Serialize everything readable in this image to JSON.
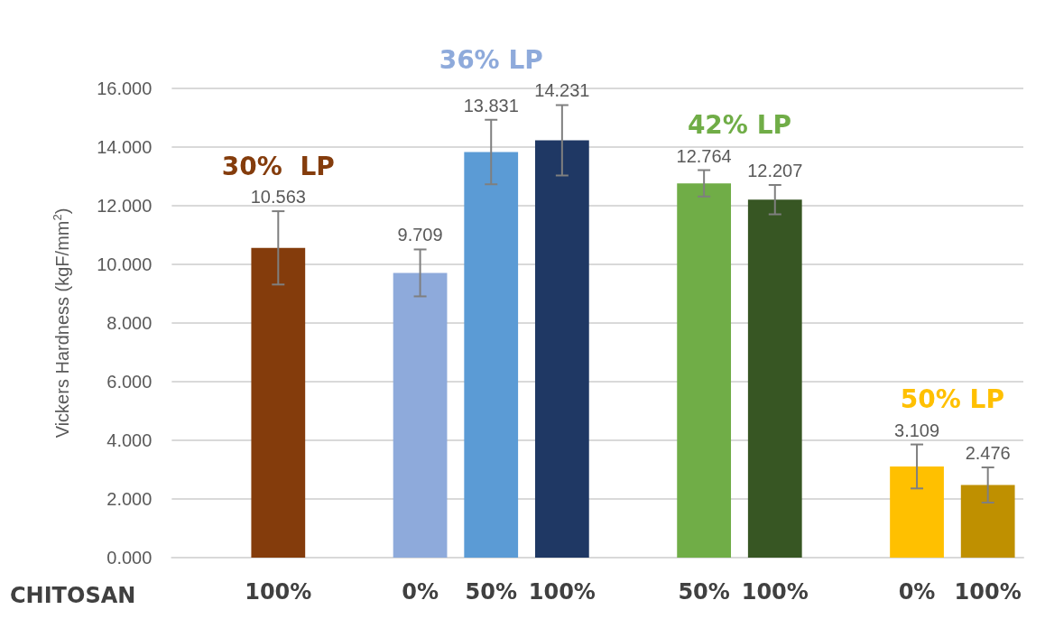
{
  "chart_data": {
    "type": "bar",
    "ylabel": "Vickers Hardness (kgF/mm$^{2}$)",
    "xlabel": "CHITOSAN",
    "categories": [
      null,
      "100%",
      null,
      "0%",
      "50%",
      "100%",
      null,
      "50%",
      "100%",
      null,
      "0%",
      "100%"
    ],
    "values": [
      null,
      10.563,
      null,
      9.709,
      13.831,
      14.231,
      null,
      12.764,
      12.207,
      null,
      3.109,
      2.476
    ],
    "errors": [
      null,
      1.25,
      null,
      0.8,
      1.1,
      1.2,
      null,
      0.45,
      0.5,
      null,
      0.75,
      0.6
    ],
    "colors": [
      null,
      "#843c0c",
      null,
      "#8eaadb",
      "#5b9bd5",
      "#1f3864",
      null,
      "#70ad47",
      "#375623",
      null,
      "#ffc000",
      "#bf9000"
    ],
    "ylim": [
      0,
      16
    ],
    "yticks": [
      {
        "value": 0,
        "label": "0.000"
      },
      {
        "value": 2,
        "label": "2.000"
      },
      {
        "value": 4,
        "label": "4.000"
      },
      {
        "value": 6,
        "label": "6.000"
      },
      {
        "value": 8,
        "label": "8.000"
      },
      {
        "value": 10,
        "label": "10.000"
      },
      {
        "value": 12,
        "label": "12.000"
      },
      {
        "value": 14,
        "label": "14.000"
      },
      {
        "value": 16,
        "label": "16.000"
      }
    ],
    "data_labels": true,
    "grid": "y",
    "annotations": [
      "30%  LP",
      "36% LP",
      "42% LP",
      "50% LP"
    ]
  }
}
